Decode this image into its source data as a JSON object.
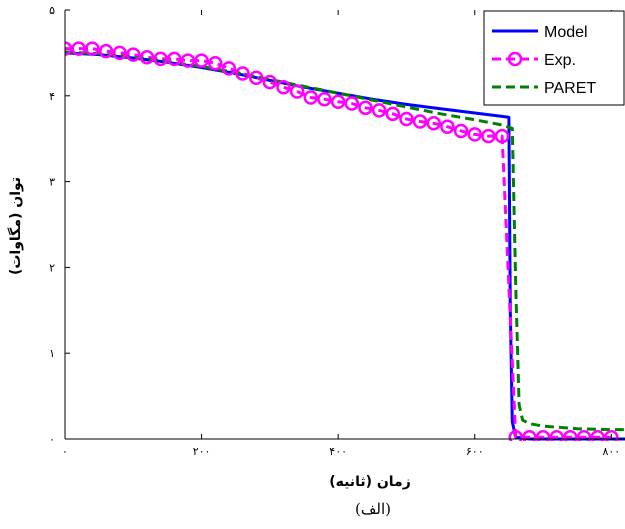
{
  "chart_data": {
    "type": "line",
    "xlabel": "زمان (ثانیه)",
    "ylabel": "توان (مگاوات)",
    "caption": "(الف)",
    "xlim": [
      0,
      820
    ],
    "ylim": [
      0,
      5
    ],
    "xticks": [
      0,
      200,
      400,
      600,
      800
    ],
    "xtick_labels": [
      "۰",
      "۲۰۰",
      "۴۰۰",
      "۶۰۰",
      "۸۰۰"
    ],
    "yticks": [
      0,
      1,
      2,
      3,
      4,
      5
    ],
    "ytick_labels": [
      "۰",
      "۱",
      "۲",
      "۳",
      "۴",
      "۵"
    ],
    "grid": false,
    "legend_position": "top-right",
    "series": [
      {
        "name": "Model",
        "color": "#0000ff",
        "style": "solid",
        "x": [
          0,
          50,
          100,
          150,
          200,
          250,
          300,
          350,
          400,
          450,
          500,
          550,
          600,
          640,
          650,
          652,
          655,
          660,
          680,
          700,
          750,
          800,
          820
        ],
        "y": [
          4.5,
          4.48,
          4.44,
          4.39,
          4.33,
          4.26,
          4.18,
          4.1,
          4.03,
          3.96,
          3.9,
          3.85,
          3.8,
          3.76,
          3.75,
          1.5,
          0.2,
          0.02,
          0.0,
          0.0,
          0.0,
          0.0,
          0.0
        ]
      },
      {
        "name": "Exp.",
        "color": "#ff00ff",
        "style": "dashed",
        "marker": "circle",
        "x": [
          0,
          20,
          40,
          60,
          80,
          100,
          120,
          140,
          160,
          180,
          200,
          220,
          240,
          260,
          280,
          300,
          320,
          340,
          360,
          380,
          400,
          420,
          440,
          460,
          480,
          500,
          520,
          540,
          560,
          580,
          600,
          620,
          640,
          660,
          680,
          700,
          720,
          740,
          760,
          780,
          800
        ],
        "y": [
          4.55,
          4.55,
          4.55,
          4.52,
          4.5,
          4.48,
          4.45,
          4.43,
          4.43,
          4.41,
          4.41,
          4.38,
          4.32,
          4.26,
          4.21,
          4.16,
          4.1,
          4.05,
          3.98,
          3.96,
          3.93,
          3.91,
          3.86,
          3.83,
          3.79,
          3.73,
          3.7,
          3.68,
          3.64,
          3.59,
          3.55,
          3.53,
          3.53,
          0.02,
          0.02,
          0.02,
          0.02,
          0.02,
          0.02,
          0.02,
          0.02
        ]
      },
      {
        "name": "PARET",
        "color": "#008000",
        "style": "dashed",
        "x": [
          0,
          50,
          100,
          150,
          200,
          250,
          300,
          350,
          400,
          450,
          500,
          550,
          600,
          640,
          655,
          660,
          665,
          670,
          680,
          700,
          750,
          800,
          820
        ],
        "y": [
          4.51,
          4.49,
          4.45,
          4.4,
          4.34,
          4.27,
          4.19,
          4.11,
          4.03,
          3.95,
          3.87,
          3.79,
          3.72,
          3.66,
          3.62,
          1.8,
          0.4,
          0.22,
          0.18,
          0.15,
          0.12,
          0.11,
          0.11
        ]
      }
    ]
  }
}
